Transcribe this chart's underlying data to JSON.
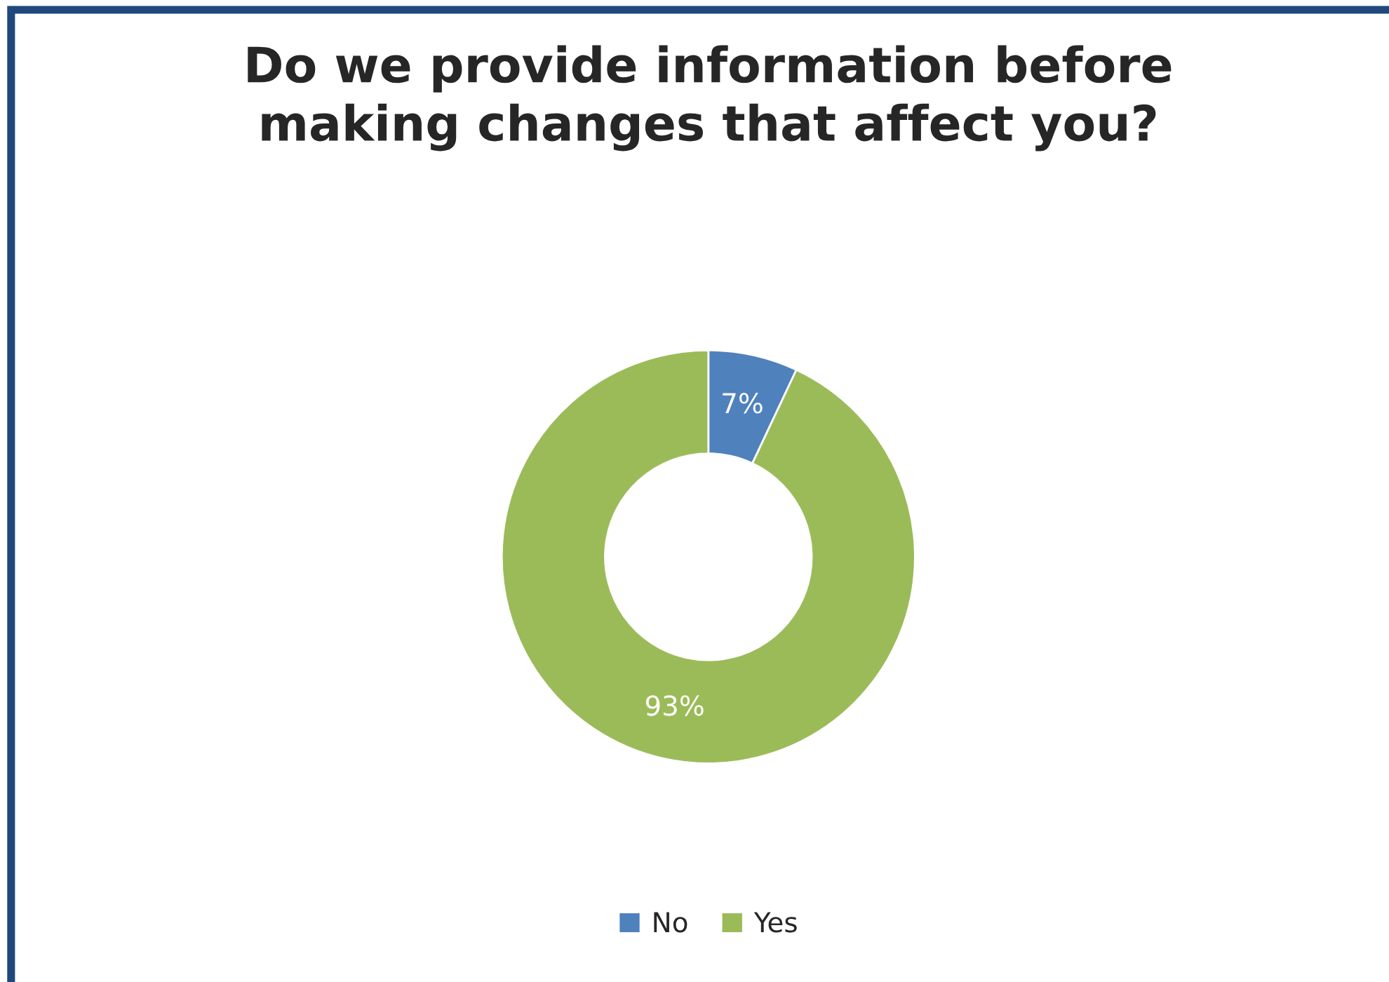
{
  "chart_data": {
    "type": "donut",
    "title": "Do we provide information before\nmaking changes that affect you?",
    "categories": [
      "No",
      "Yes"
    ],
    "values": [
      7,
      93
    ],
    "colors": [
      "#4f81bd",
      "#9bbb59"
    ],
    "value_labels": [
      "7%",
      "93%"
    ],
    "legend": "bottom"
  }
}
